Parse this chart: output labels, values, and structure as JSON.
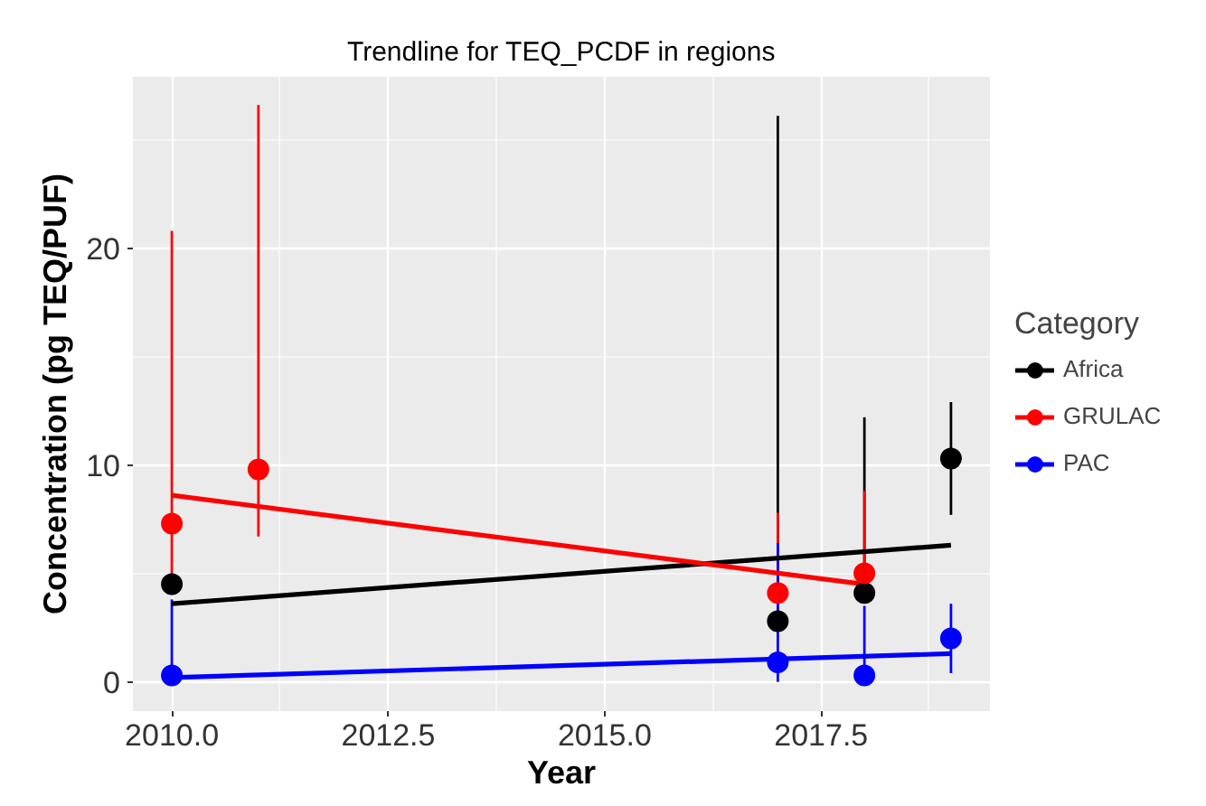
{
  "chart_data": {
    "type": "scatter",
    "title": "Trendline for TEQ_PCDF in regions",
    "xlabel": "Year",
    "ylabel": "Concentration (pg TEQ/PUF)",
    "legend_title": "Category",
    "xlim": [
      2009.55,
      2019.45
    ],
    "ylim": [
      -1.35,
      27.9
    ],
    "xticks": [
      {
        "value": 2010,
        "label": "2010.0"
      },
      {
        "value": 2012.5,
        "label": "2012.5"
      },
      {
        "value": 2015,
        "label": "2015.0"
      },
      {
        "value": 2017.5,
        "label": "2017.5"
      }
    ],
    "yticks": [
      0,
      10,
      20
    ],
    "grid": true,
    "legend": "right",
    "series": [
      {
        "name": "Africa",
        "color": "#000000",
        "marker": "circle",
        "x": [
          2010,
          2017,
          2018,
          2019
        ],
        "values": [
          4.5,
          2.8,
          4.1,
          10.3
        ],
        "errors": [
          null,
          [
            2.8,
            26.1
          ],
          [
            4.1,
            12.2
          ],
          [
            7.7,
            12.9
          ]
        ]
      },
      {
        "name": "GRULAC",
        "color": "#ff0000",
        "marker": "circle",
        "x": [
          2010,
          2011,
          2017,
          2018
        ],
        "values": [
          7.3,
          9.8,
          4.1,
          5.0
        ],
        "errors": [
          [
            4.0,
            20.8
          ],
          [
            6.7,
            26.6
          ],
          [
            4.1,
            7.8
          ],
          [
            5.0,
            8.8
          ]
        ]
      },
      {
        "name": "PAC",
        "color": "#0000ff",
        "marker": "circle",
        "x": [
          2010,
          2017,
          2018,
          2019
        ],
        "values": [
          0.3,
          0.9,
          0.3,
          2.0
        ],
        "errors": [
          [
            0.3,
            3.8
          ],
          [
            0.0,
            6.4
          ],
          [
            0.3,
            3.5
          ],
          [
            0.4,
            3.6
          ]
        ]
      },
      {
        "color": "#000000",
        "type": "line",
        "x": [
          2010,
          2019
        ],
        "values": [
          3.6,
          6.3
        ]
      },
      {
        "color": "#ff0000",
        "type": "line",
        "x": [
          2010,
          2018
        ],
        "values": [
          8.6,
          4.5
        ]
      },
      {
        "color": "#0000ff",
        "type": "line",
        "x": [
          2010,
          2019
        ],
        "values": [
          0.2,
          1.3
        ]
      }
    ]
  }
}
